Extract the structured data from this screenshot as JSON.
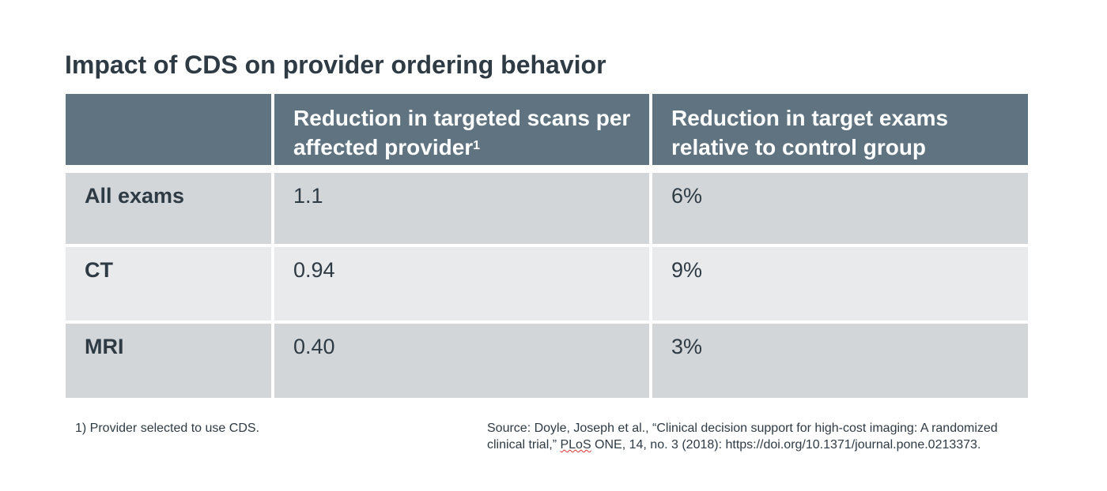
{
  "title": "Impact of CDS on provider ordering behavior",
  "table": {
    "headers": [
      "",
      "Reduction in targeted scans per affected provider",
      "Reduction in target exams relative to control group"
    ],
    "header_footnote_mark": "1",
    "rows": [
      {
        "label": "All exams",
        "scans": "1.1",
        "relative": "6%"
      },
      {
        "label": "CT",
        "scans": "0.94",
        "relative": "9%"
      },
      {
        "label": "MRI",
        "scans": "0.40",
        "relative": "3%"
      }
    ]
  },
  "footnote": "1)  Provider selected to use CDS.",
  "source": {
    "part1": "Source: Doyle, Joseph et al., “Clinical decision support for high-cost imaging: A randomized clinical trial,” ",
    "journal": "PLoS",
    "part2": " ONE, 14, no. 3 (2018): https://doi.org/10.1371/journal.pone.0213373."
  },
  "colors": {
    "header": "#5f7381",
    "row_dark": "#d2d6d9",
    "row_light": "#e9eaec",
    "text": "#2e3a44"
  }
}
